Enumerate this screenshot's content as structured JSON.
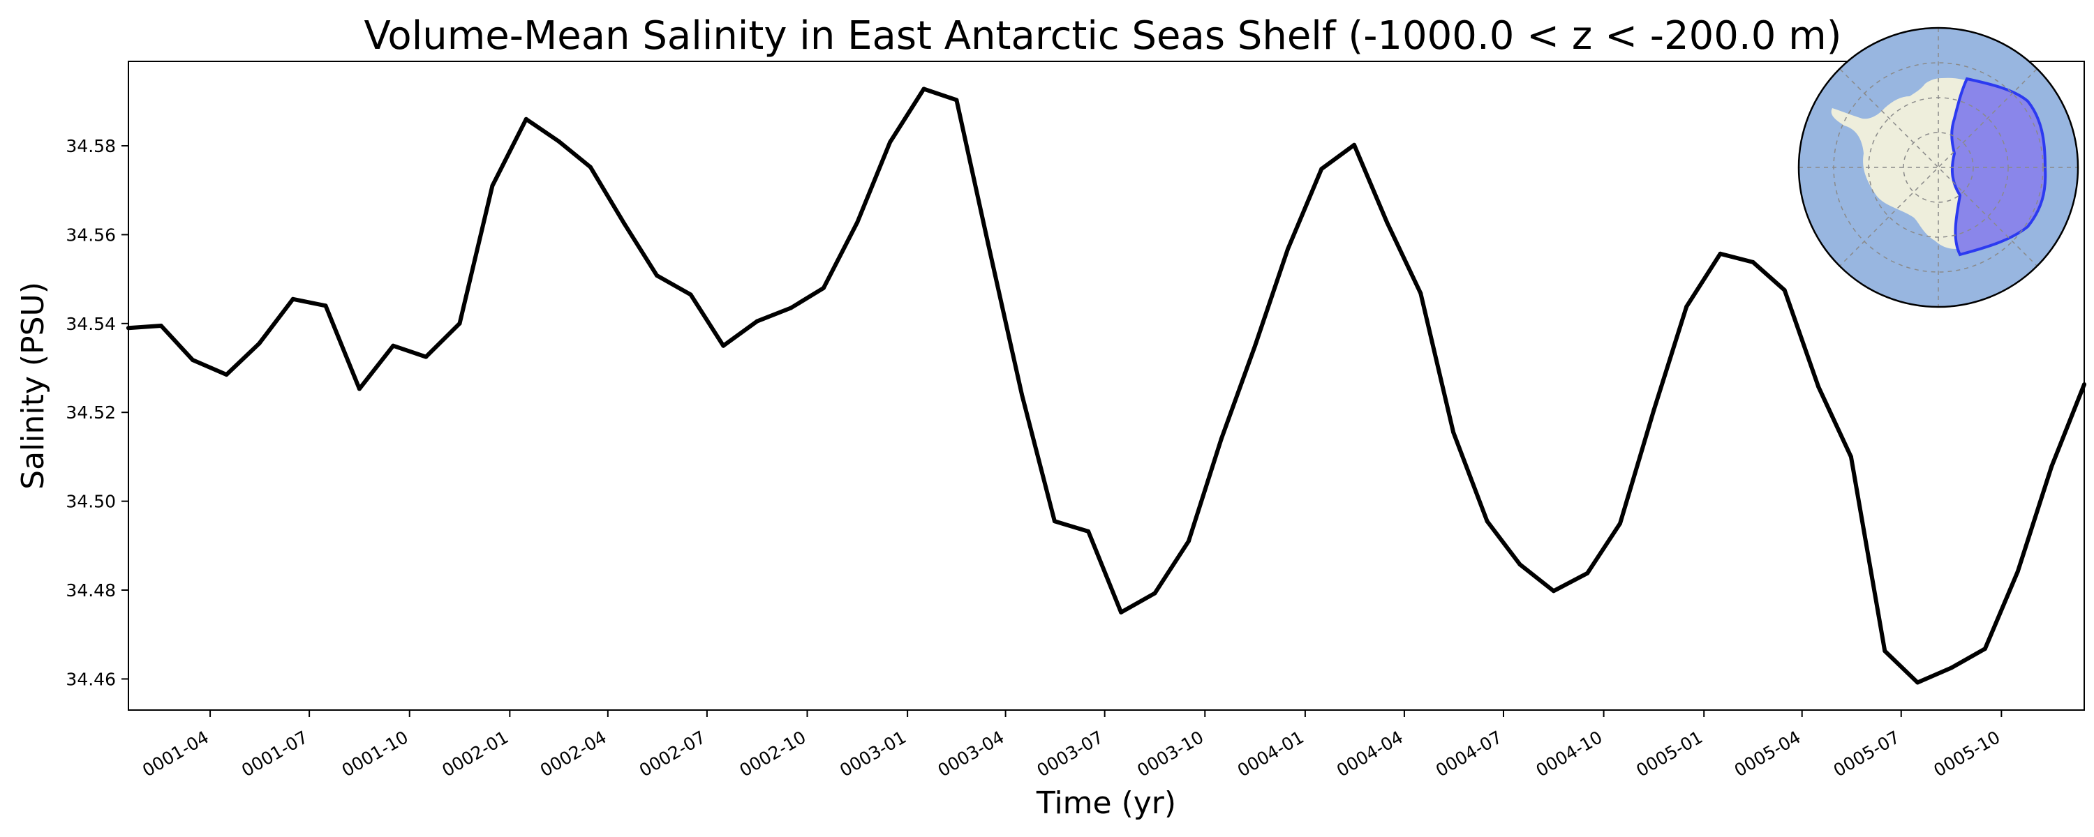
{
  "chart_data": {
    "type": "line",
    "title": "Volume-Mean Salinity in East Antarctic Seas Shelf (-1000.0 < z < -200.0 m)",
    "xlabel": "Time (yr)",
    "ylabel": "Salinity (PSU)",
    "x_ticks": [
      "0001-04",
      "0001-07",
      "0001-10",
      "0002-01",
      "0002-04",
      "0002-07",
      "0002-10",
      "0003-01",
      "0003-04",
      "0003-07",
      "0003-10",
      "0004-01",
      "0004-04",
      "0004-07",
      "0004-10",
      "0005-01",
      "0005-04",
      "0005-07",
      "0005-10"
    ],
    "y_ticks": [
      "34.46",
      "34.48",
      "34.50",
      "34.52",
      "34.54",
      "34.56",
      "34.58"
    ],
    "ylim": [
      34.453,
      34.599
    ],
    "xlim": [
      "0001-01-16",
      "0005-12-16"
    ],
    "grid": false,
    "legend": "none",
    "line_color": "#000000",
    "series": [
      {
        "x": [
          "0001-01-16",
          "0001-02-15",
          "0001-03-16",
          "0001-04-16",
          "0001-05-16",
          "0001-06-16",
          "0001-07-16",
          "0001-08-16",
          "0001-09-16",
          "0001-10-16",
          "0001-11-16",
          "0001-12-16",
          "0002-01-16",
          "0002-02-15",
          "0002-03-16",
          "0002-04-16",
          "0002-05-16",
          "0002-06-16",
          "0002-07-16",
          "0002-08-16",
          "0002-09-16",
          "0002-10-16",
          "0002-11-16",
          "0002-12-16",
          "0003-01-16",
          "0003-02-15",
          "0003-03-16",
          "0003-04-16",
          "0003-05-16",
          "0003-06-16",
          "0003-07-16",
          "0003-08-16",
          "0003-09-16",
          "0003-10-16",
          "0003-11-16",
          "0003-12-16",
          "0004-01-16",
          "0004-02-15",
          "0004-03-16",
          "0004-04-16",
          "0004-05-16",
          "0004-06-16",
          "0004-07-16",
          "0004-08-16",
          "0004-09-16",
          "0004-10-16",
          "0004-11-16",
          "0004-12-16",
          "0005-01-16",
          "0005-02-15",
          "0005-03-16",
          "0005-04-16",
          "0005-05-16",
          "0005-06-16",
          "0005-07-16",
          "0005-08-16",
          "0005-09-16",
          "0005-10-16",
          "0005-11-16",
          "0005-12-16"
        ],
        "values": [
          34.539,
          34.5395,
          34.5318,
          34.5285,
          34.5355,
          34.5455,
          34.544,
          34.5253,
          34.535,
          34.5325,
          34.54,
          34.571,
          34.586,
          34.581,
          34.5752,
          34.5625,
          34.5508,
          34.5465,
          34.535,
          34.5405,
          34.5435,
          34.548,
          34.5628,
          34.5808,
          34.5928,
          34.5903,
          34.558,
          34.524,
          34.4955,
          34.4932,
          34.475,
          34.4793,
          34.491,
          34.514,
          34.535,
          34.5567,
          34.5748,
          34.5802,
          34.5628,
          34.5468,
          34.5155,
          34.4955,
          34.4858,
          34.4798,
          34.4838,
          34.495,
          34.5205,
          34.5438,
          34.5557,
          34.5538,
          34.5475,
          34.5258,
          34.51,
          34.4663,
          34.4592,
          34.4625,
          34.4668,
          34.4842,
          34.5078,
          34.5263
        ]
      }
    ]
  },
  "inset_map": {
    "ocean_color": "#98b6e0",
    "land_color": "#eeeedc",
    "region_fill": "#8a86ea",
    "region_edge": "#2c3af0"
  }
}
